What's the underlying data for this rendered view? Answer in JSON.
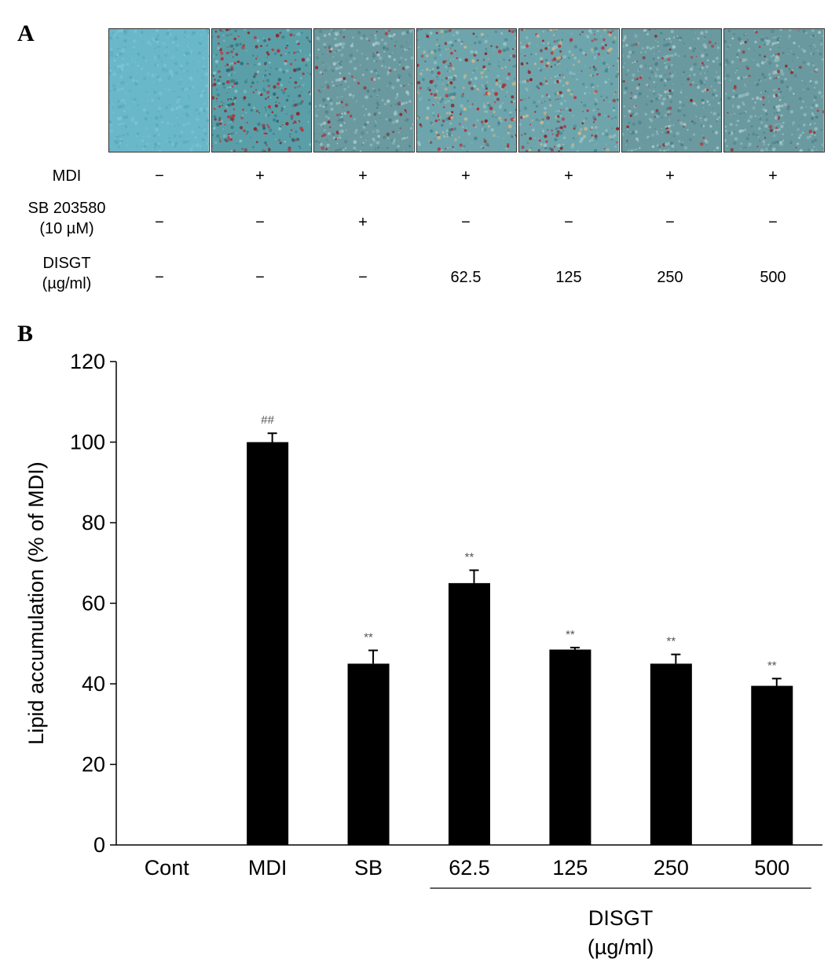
{
  "panel_a": {
    "label": "A",
    "micrographs": [
      {
        "name": "micrograph-control",
        "stain": "none"
      },
      {
        "name": "micrograph-mdi",
        "stain": "heavy"
      },
      {
        "name": "micrograph-sb",
        "stain": "light"
      },
      {
        "name": "micrograph-62-5",
        "stain": "medium"
      },
      {
        "name": "micrograph-125",
        "stain": "medium"
      },
      {
        "name": "micrograph-250",
        "stain": "light"
      },
      {
        "name": "micrograph-500",
        "stain": "light"
      }
    ],
    "rows": [
      {
        "label": "MDI",
        "cells": [
          "−",
          "+",
          "+",
          "+",
          "+",
          "+",
          "+"
        ]
      },
      {
        "label": "SB 203580\n(10 µM)",
        "cells": [
          "−",
          "−",
          "+",
          "−",
          "−",
          "−",
          "−"
        ]
      },
      {
        "label": "DISGT\n(µg/ml)",
        "cells": [
          "−",
          "−",
          "−",
          "62.5",
          "125",
          "250",
          "500"
        ]
      }
    ]
  },
  "panel_b": {
    "label": "B"
  },
  "chart_data": {
    "type": "bar",
    "categories": [
      "Cont",
      "MDI",
      "SB",
      "62.5",
      "125",
      "250",
      "500"
    ],
    "values": [
      0,
      100,
      45,
      65,
      48.5,
      45,
      39.5
    ],
    "errors": [
      0,
      2.2,
      3.3,
      3.2,
      0.5,
      2.3,
      1.8
    ],
    "annotations": [
      "",
      "##",
      "**",
      "**",
      "**",
      "**",
      "**"
    ],
    "ylabel": "Lipid accumulation (% of MDI)",
    "ylim": [
      0,
      120
    ],
    "yticks": [
      0,
      20,
      40,
      60,
      80,
      100,
      120
    ],
    "group_label": "DISGT\n(µg/ml)",
    "group_categories": [
      "62.5",
      "125",
      "250",
      "500"
    ],
    "bar_color": "#000000",
    "annotation_color": "#555555",
    "grid": false
  }
}
